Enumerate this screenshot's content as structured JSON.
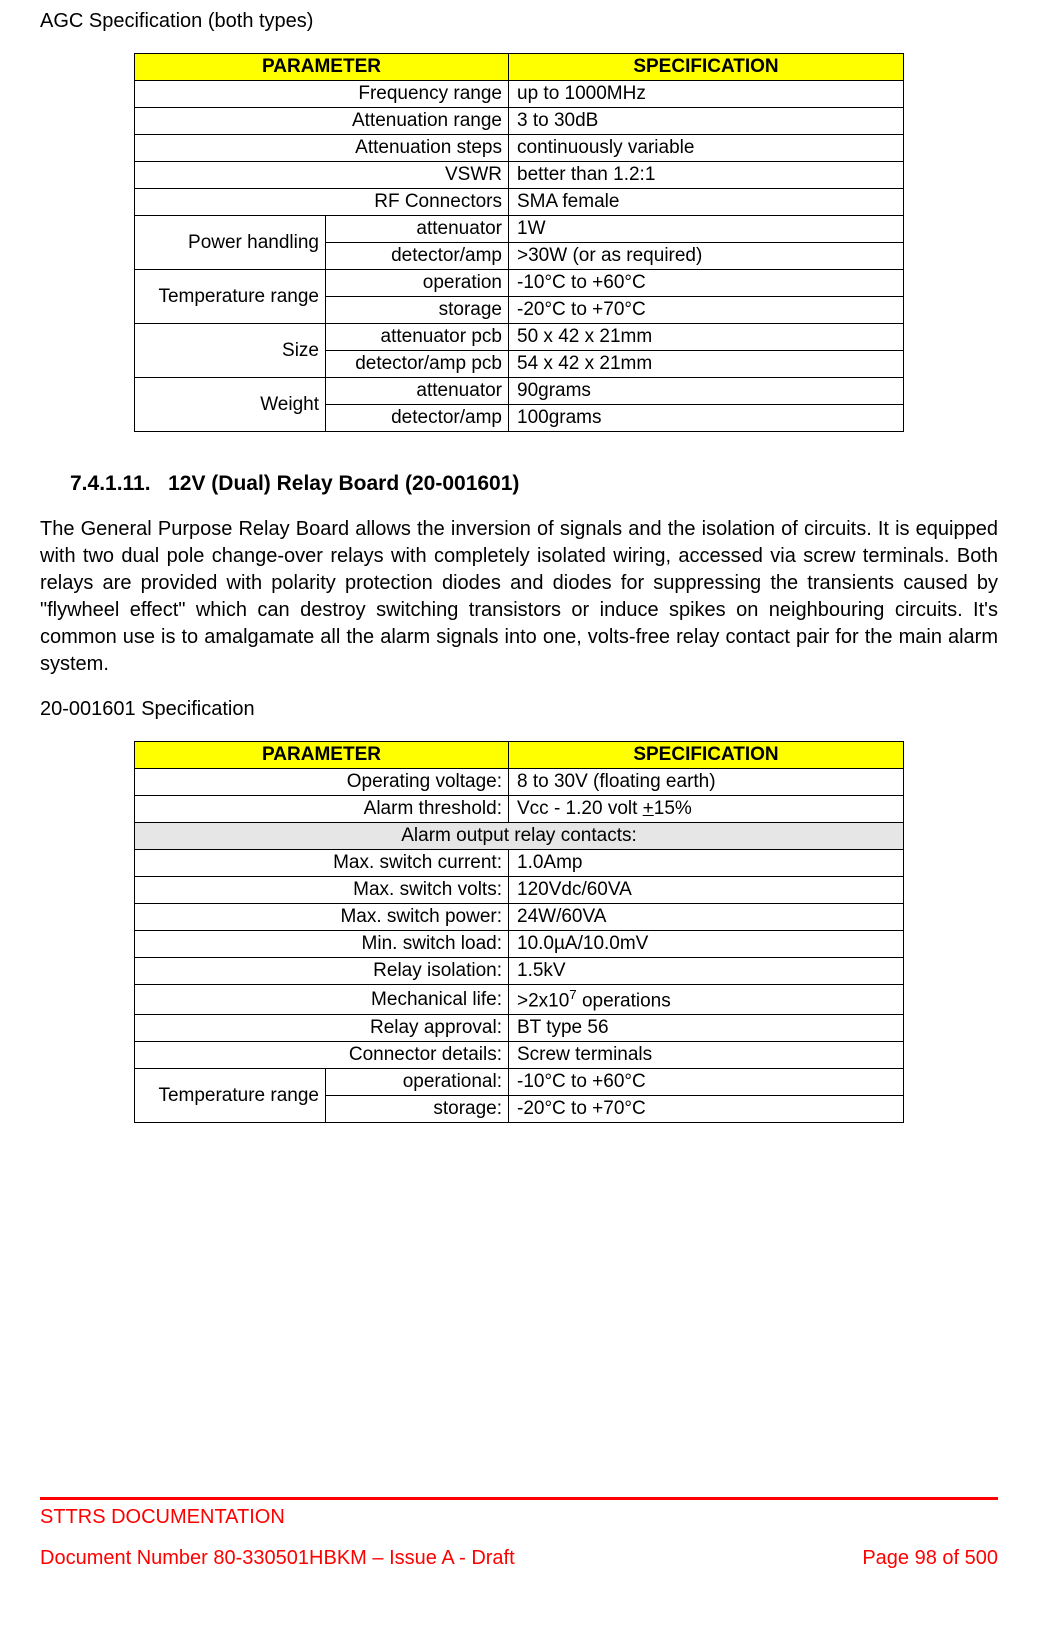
{
  "agc": {
    "title": "AGC Specification (both types)",
    "headers": {
      "param": "PARAMETER",
      "spec": "SPECIFICATION"
    },
    "rows_simple": [
      {
        "p": "Frequency range",
        "v": "up to 1000MHz"
      },
      {
        "p": "Attenuation range",
        "v": "3 to 30dB"
      },
      {
        "p": "Attenuation steps",
        "v": "continuously variable"
      },
      {
        "p": "VSWR",
        "v": "better than 1.2:1"
      },
      {
        "p": "RF Connectors",
        "v": "SMA female"
      }
    ],
    "power": {
      "label": "Power handling",
      "rows": [
        {
          "p": "attenuator",
          "v": "1W"
        },
        {
          "p": "detector/amp",
          "v": ">30W (or as required)"
        }
      ]
    },
    "temp": {
      "label": "Temperature range",
      "rows": [
        {
          "p": "operation",
          "v": "-10°C to +60°C"
        },
        {
          "p": "storage",
          "v": "-20°C to +70°C"
        }
      ]
    },
    "size": {
      "label": "Size",
      "rows": [
        {
          "p": "attenuator pcb",
          "v": "50 x 42 x 21mm"
        },
        {
          "p": "detector/amp pcb",
          "v": "54 x 42 x 21mm"
        }
      ]
    },
    "weight": {
      "label": "Weight",
      "rows": [
        {
          "p": "attenuator",
          "v": "90grams"
        },
        {
          "p": "detector/amp",
          "v": "100grams"
        }
      ]
    }
  },
  "relay": {
    "heading_num": "7.4.1.11.",
    "heading_text": "12V (Dual) Relay Board (20-001601)",
    "body": "The General Purpose Relay Board allows the inversion of signals and the isolation of circuits. It is equipped with two dual pole change-over relays with completely isolated wiring, accessed via screw terminals. Both relays are provided with polarity protection diodes and diodes for suppressing the transients caused by \"flywheel effect\" which can destroy switching transistors or induce spikes on neighbouring circuits. It's common use is to amalgamate all the alarm signals into one, volts-free relay contact pair for the main alarm system.",
    "spec_title": "20-001601 Specification",
    "headers": {
      "param": "PARAMETER",
      "spec": "SPECIFICATION"
    },
    "rows_top": [
      {
        "p": "Operating voltage:",
        "v": "8 to 30V (floating earth)"
      },
      {
        "p": "Alarm threshold:",
        "v_pre": "Vcc - 1.20 volt ",
        "v_u": "+",
        "v_post": "15%"
      }
    ],
    "section_hdr": "Alarm output relay contacts:",
    "rows_mid": [
      {
        "p": "Max. switch current:",
        "v": "1.0Amp"
      },
      {
        "p": "Max. switch volts:",
        "v": "120Vdc/60VA"
      },
      {
        "p": "Max. switch power:",
        "v": "24W/60VA"
      },
      {
        "p": "Min. switch load:",
        "v": "10.0µA/10.0mV"
      },
      {
        "p": "Relay isolation:",
        "v": "1.5kV"
      }
    ],
    "mech": {
      "p": "Mechanical life:",
      "v_pre": ">2x10",
      "v_sup": "7",
      "v_post": " operations"
    },
    "rows_after": [
      {
        "p": "Relay approval:",
        "v": "BT type 56"
      },
      {
        "p": "Connector details:",
        "v": "Screw terminals"
      }
    ],
    "temp": {
      "label": "Temperature range",
      "rows": [
        {
          "p": "operational:",
          "v": "-10°C to +60°C"
        },
        {
          "p": "storage:",
          "v": "-20°C to +70°C"
        }
      ]
    }
  },
  "footer": {
    "title": "STTRS DOCUMENTATION",
    "doc": "Document Number 80-330501HBKM – Issue A - Draft",
    "page": "Page 98 of 500"
  }
}
